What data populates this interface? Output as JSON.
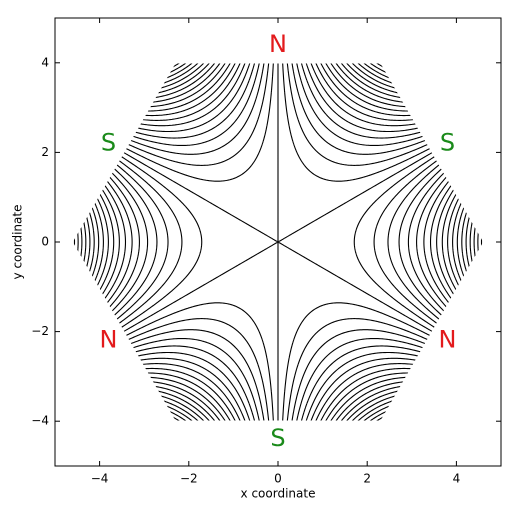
{
  "chart_data": {
    "type": "contour",
    "xlabel": "x coordinate",
    "ylabel": "y coordinate",
    "xlim": [
      -5,
      5
    ],
    "ylim": [
      -5,
      5
    ],
    "xticks": [
      {
        "value": -4,
        "label": "−4"
      },
      {
        "value": -2,
        "label": "−2"
      },
      0,
      2,
      4
    ],
    "yticks": [
      {
        "value": -4,
        "label": "−4"
      },
      {
        "value": -2,
        "label": "−2"
      },
      0,
      2,
      4
    ],
    "levels": [
      -95,
      -90,
      -85,
      -80,
      -75,
      -70,
      -65,
      -60,
      -55,
      -50,
      -45,
      -40,
      -35,
      -30,
      -25,
      -20,
      -15,
      -10,
      -5,
      0,
      5,
      10,
      15,
      20,
      25,
      30,
      35,
      40,
      45,
      50,
      55,
      60,
      65,
      70,
      75,
      80,
      85,
      90,
      95
    ],
    "color": "#000000",
    "annotations": [
      {
        "text": "N",
        "color": "#e31a1c"
      },
      {
        "text": "S",
        "color": "#1a8a1a"
      },
      {
        "text": "S",
        "color": "#1a8a1a"
      },
      {
        "text": "N",
        "color": "#e31a1c"
      },
      {
        "text": "N",
        "color": "#e31a1c"
      },
      {
        "text": "S",
        "color": "#1a8a1a"
      }
    ]
  }
}
